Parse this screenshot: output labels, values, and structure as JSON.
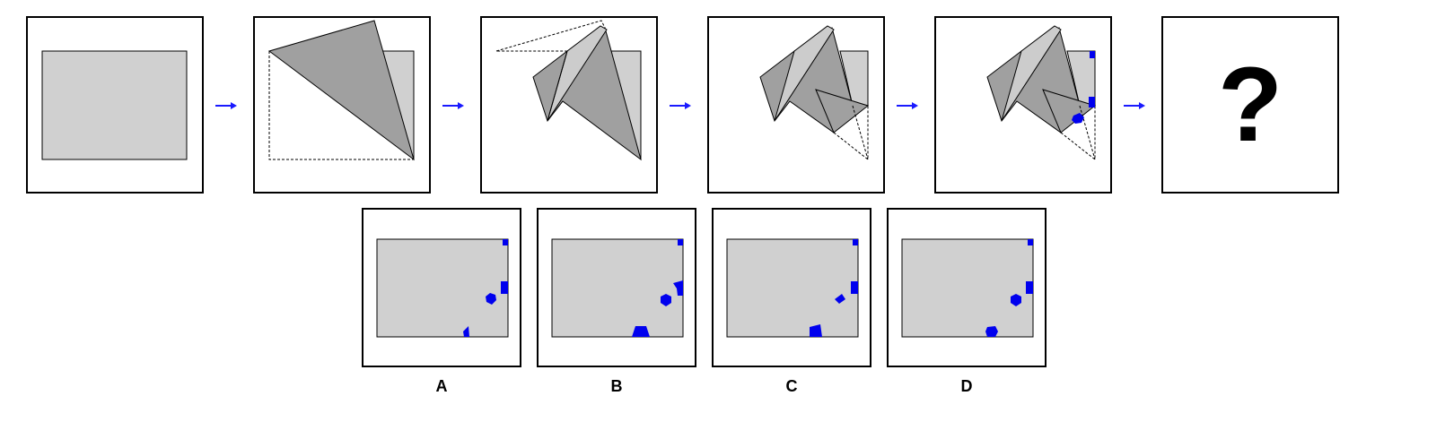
{
  "colors": {
    "paper": "#d0d0d0",
    "folded": "#a0a0a0",
    "folded_light": "#cccccc",
    "hole": "#0000ee",
    "arrow": "#1a1aff",
    "outline": "#000000"
  },
  "question_mark": "?",
  "options": [
    {
      "label": "A"
    },
    {
      "label": "B"
    },
    {
      "label": "C"
    },
    {
      "label": "D"
    }
  ]
}
